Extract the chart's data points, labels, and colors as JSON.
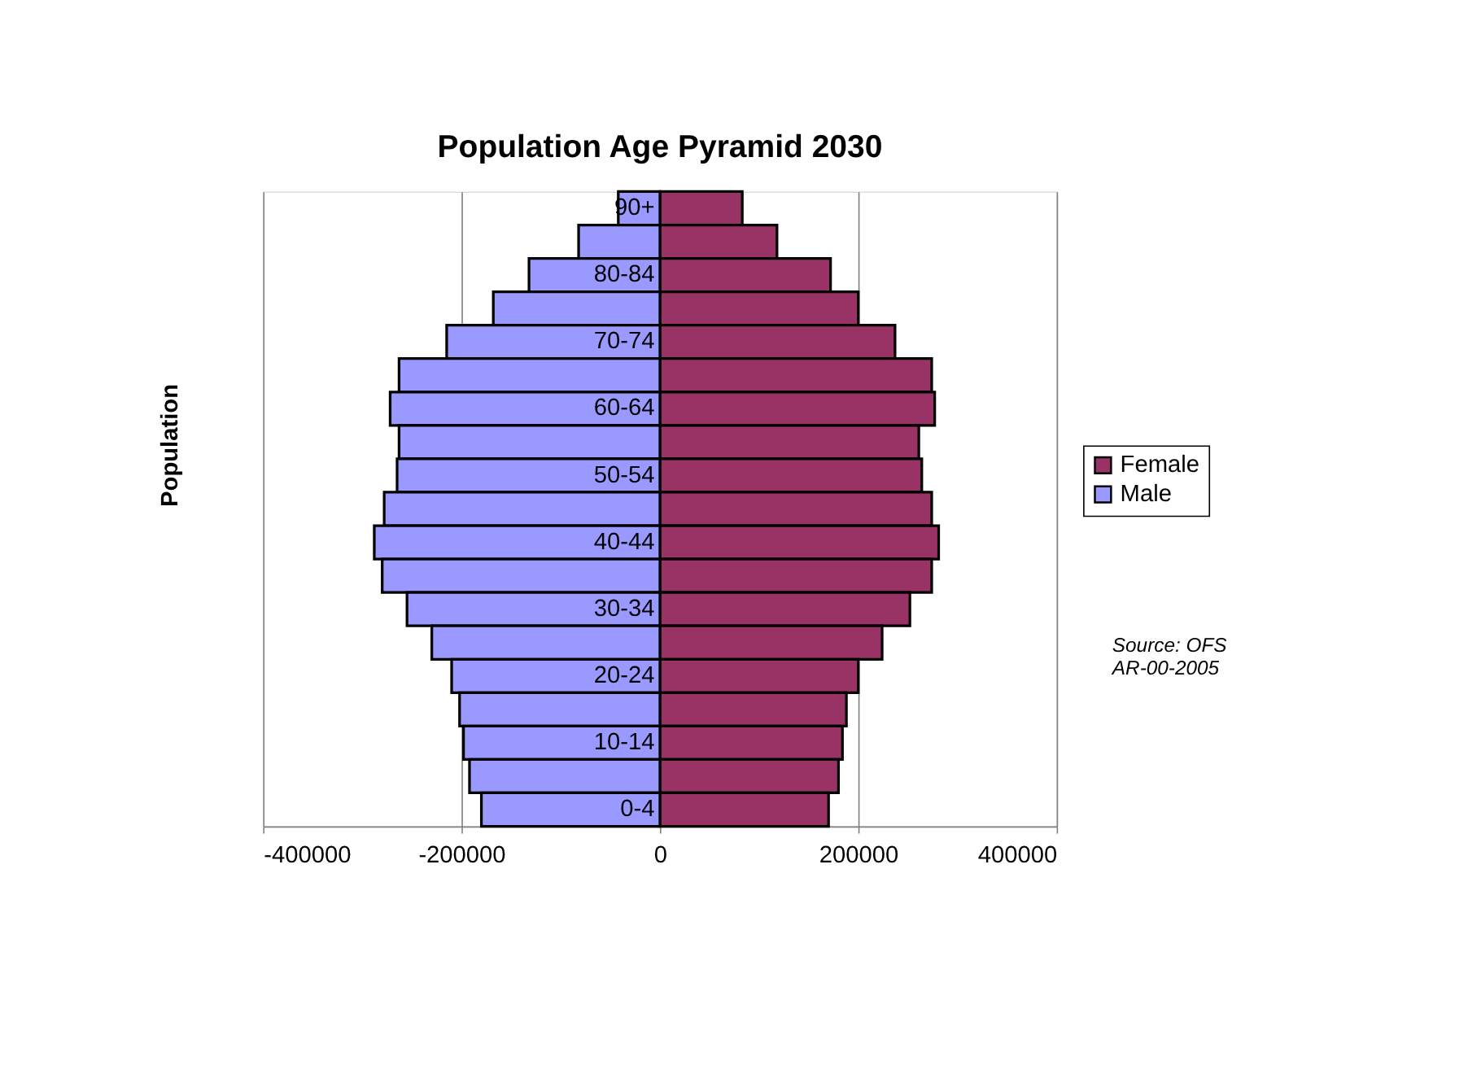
{
  "chart_data": {
    "type": "bar",
    "orientation": "horizontal",
    "title": "Population Age Pyramid 2030",
    "ylabel": "Population",
    "categories": [
      "90+",
      null,
      "80-84",
      null,
      "70-74",
      null,
      "60-64",
      null,
      "50-54",
      null,
      "40-44",
      null,
      "30-34",
      null,
      "20-24",
      null,
      "10-14",
      null,
      "0-4"
    ],
    "series": [
      {
        "name": "Female",
        "color": "#993366",
        "values": [
          83000,
          118000,
          172000,
          200000,
          237000,
          274000,
          277000,
          261000,
          264000,
          274000,
          281000,
          274000,
          252000,
          224000,
          200000,
          188000,
          184000,
          180000,
          170000
        ]
      },
      {
        "name": "Male",
        "color": "#9999ff",
        "values": [
          -42000,
          -82000,
          -132000,
          -168000,
          -215000,
          -263000,
          -272000,
          -263000,
          -265000,
          -278000,
          -288000,
          -280000,
          -255000,
          -230000,
          -210000,
          -202000,
          -198000,
          -192000,
          -180000
        ]
      }
    ],
    "stacked": true,
    "xlim": [
      -400000,
      400000
    ],
    "xticks": [
      {
        "value": -400000,
        "label": "-400000"
      },
      {
        "value": -200000,
        "label": "-200000"
      },
      0,
      {
        "value": 200000,
        "label": "200000"
      },
      {
        "value": 400000,
        "label": "400000"
      }
    ],
    "grid": "x",
    "legend": "right",
    "annotations": [
      "Source: OFS\nAR-00-2005"
    ]
  }
}
